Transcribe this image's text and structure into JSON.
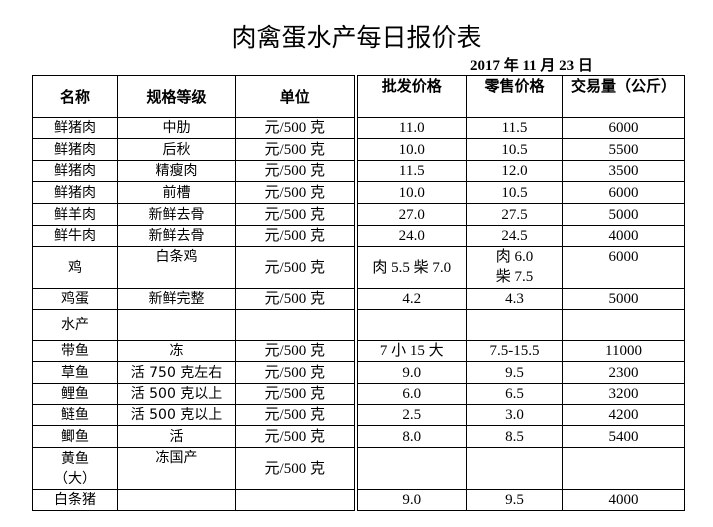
{
  "title": "肉禽蛋水产每日报价表",
  "date": "2017 年 11 月 23 日",
  "headers": [
    "名称",
    "规格等级",
    "单位",
    "批发价格",
    "零售价格",
    "交易量（公斤）"
  ],
  "rows": [
    [
      "鲜猪肉",
      "中肋",
      "元/500 克",
      "11.0",
      "11.5",
      "6000"
    ],
    [
      "鲜猪肉",
      "后秋",
      "元/500 克",
      "10.0",
      "10.5",
      "5500"
    ],
    [
      "鲜猪肉",
      "精瘦肉",
      "元/500 克",
      "11.5",
      "12.0",
      "3500"
    ],
    [
      "鲜猪肉",
      "前槽",
      "元/500 克",
      "10.0",
      "10.5",
      "6000"
    ],
    [
      "鲜羊肉",
      "新鲜去骨",
      "元/500 克",
      "27.0",
      "27.5",
      "5000"
    ],
    [
      "鲜牛肉",
      "新鲜去骨",
      "元/500 克",
      "24.0",
      "24.5",
      "4000"
    ],
    [
      "鸡",
      "白条鸡",
      "元/500 克",
      "肉 5.5 柴 7.0",
      "肉 6.0\n柴 7.5",
      "6000"
    ],
    [
      "鸡蛋",
      "新鲜完整",
      "元/500 克",
      "4.2",
      "4.3",
      "5000"
    ],
    [
      "水产",
      "",
      "",
      "",
      "",
      ""
    ],
    [
      "带鱼",
      "冻",
      "元/500 克",
      "7 小 15 大",
      "7.5-15.5",
      "11000"
    ],
    [
      "草鱼",
      "活 750 克左右",
      "元/500 克",
      "9.0",
      "9.5",
      "2300"
    ],
    [
      "鲤鱼",
      "活 500 克以上",
      "元/500 克",
      "6.0",
      "6.5",
      "3200"
    ],
    [
      "鲢鱼",
      "活 500 克以上",
      "元/500 克",
      "2.5",
      "3.0",
      "4200"
    ],
    [
      "鲫鱼",
      "活",
      "元/500 克",
      "8.0",
      "8.5",
      "5400"
    ],
    [
      "黄鱼\n（大）",
      "冻国产",
      "元/500 克",
      "",
      "",
      ""
    ],
    [
      "白条猪",
      "",
      "",
      "9.0",
      "9.5",
      "4000"
    ]
  ]
}
